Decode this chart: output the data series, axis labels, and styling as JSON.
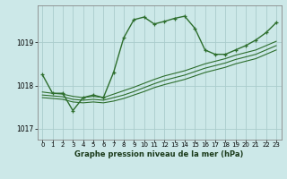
{
  "title": "Graphe pression niveau de la mer (hPa)",
  "bg_color": "#cce8e8",
  "grid_color": "#aacccc",
  "line_color": "#2d6e2d",
  "ylim": [
    1016.75,
    1019.85
  ],
  "xlim": [
    -0.5,
    23.5
  ],
  "yticks": [
    1017,
    1018,
    1019
  ],
  "xticks": [
    0,
    1,
    2,
    3,
    4,
    5,
    6,
    7,
    8,
    9,
    10,
    11,
    12,
    13,
    14,
    15,
    16,
    17,
    18,
    19,
    20,
    21,
    22,
    23
  ],
  "series": [
    {
      "x": [
        0,
        1,
        2,
        3,
        4,
        5,
        6,
        7,
        8,
        9,
        10,
        11,
        12,
        13,
        14,
        15,
        16,
        17,
        18,
        19,
        20,
        21,
        22,
        23
      ],
      "y": [
        1018.25,
        1017.82,
        1017.82,
        1017.42,
        1017.72,
        1017.78,
        1017.72,
        1018.3,
        1019.1,
        1019.52,
        1019.58,
        1019.42,
        1019.48,
        1019.55,
        1019.6,
        1019.32,
        1018.82,
        1018.72,
        1018.72,
        1018.82,
        1018.92,
        1019.05,
        1019.22,
        1019.45
      ],
      "marker": true,
      "lw": 1.0
    },
    {
      "x": [
        0,
        1,
        2,
        3,
        4,
        5,
        6,
        7,
        8,
        9,
        10,
        11,
        12,
        13,
        14,
        15,
        16,
        17,
        18,
        19,
        20,
        21,
        22,
        23
      ],
      "y": [
        1017.72,
        1017.7,
        1017.68,
        1017.62,
        1017.6,
        1017.62,
        1017.6,
        1017.64,
        1017.7,
        1017.78,
        1017.86,
        1017.95,
        1018.02,
        1018.08,
        1018.14,
        1018.22,
        1018.3,
        1018.36,
        1018.42,
        1018.5,
        1018.56,
        1018.62,
        1018.72,
        1018.82
      ],
      "marker": false,
      "lw": 0.8
    },
    {
      "x": [
        0,
        1,
        2,
        3,
        4,
        5,
        6,
        7,
        8,
        9,
        10,
        11,
        12,
        13,
        14,
        15,
        16,
        17,
        18,
        19,
        20,
        21,
        22,
        23
      ],
      "y": [
        1017.78,
        1017.76,
        1017.74,
        1017.68,
        1017.66,
        1017.68,
        1017.66,
        1017.72,
        1017.78,
        1017.86,
        1017.95,
        1018.04,
        1018.12,
        1018.18,
        1018.24,
        1018.32,
        1018.4,
        1018.46,
        1018.52,
        1018.6,
        1018.66,
        1018.72,
        1018.82,
        1018.92
      ],
      "marker": false,
      "lw": 0.8
    },
    {
      "x": [
        0,
        1,
        2,
        3,
        4,
        5,
        6,
        7,
        8,
        9,
        10,
        11,
        12,
        13,
        14,
        15,
        16,
        17,
        18,
        19,
        20,
        21,
        22,
        23
      ],
      "y": [
        1017.85,
        1017.82,
        1017.8,
        1017.75,
        1017.72,
        1017.75,
        1017.72,
        1017.8,
        1017.88,
        1017.96,
        1018.05,
        1018.14,
        1018.22,
        1018.28,
        1018.34,
        1018.42,
        1018.5,
        1018.56,
        1018.62,
        1018.7,
        1018.76,
        1018.82,
        1018.92,
        1019.02
      ],
      "marker": false,
      "lw": 0.8
    }
  ]
}
